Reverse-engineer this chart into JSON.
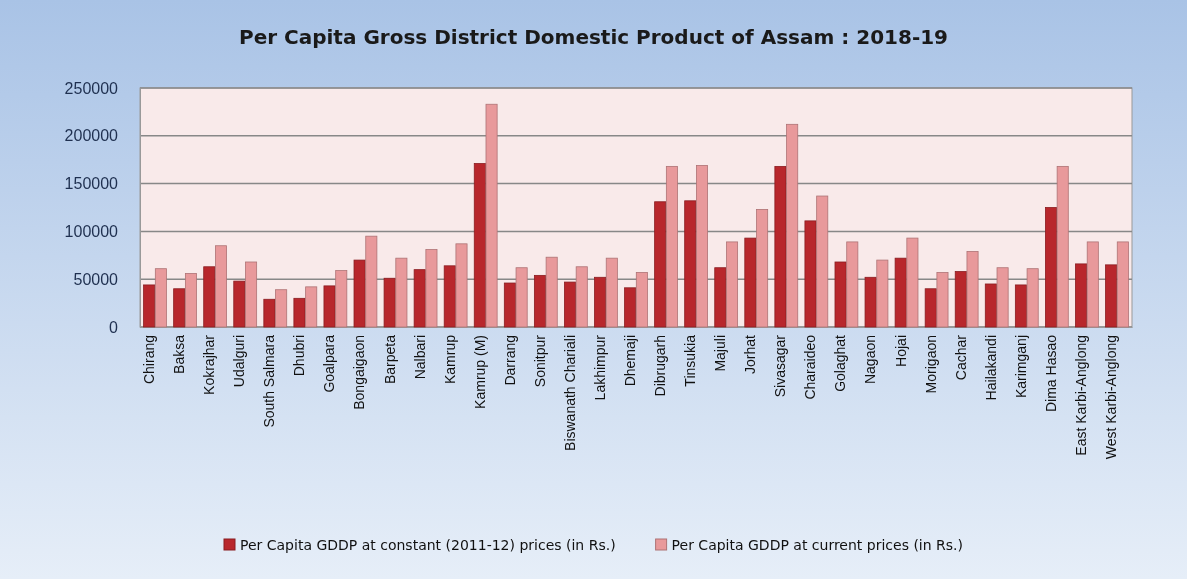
{
  "chart_data": {
    "type": "bar",
    "title": "Per Capita Gross District Domestic Product of Assam : 2018-19",
    "categories": [
      "Chirang",
      "Baksa",
      "Kokrajhar",
      "Udalguri",
      "South Salmara",
      "Dhubri",
      "Goalpara",
      "Bongaigaon",
      "Barpeta",
      "Nalbari",
      "Kamrup",
      "Kamrup (M)",
      "Darrang",
      "Sonitpur",
      "Biswanath Chariali",
      "Lakhimpur",
      "Dhemaji",
      "Dibrugarh",
      "Tinsukia",
      "Majuli",
      "Jorhat",
      "Sivasagar",
      "Charaideo",
      "Golaghat",
      "Nagaon",
      "Hojai",
      "Morigaon",
      "Cachar",
      "Hailakandi",
      "Karimganj",
      "Dima Hasao",
      "East Karbi-Anglong",
      "West Karbi-Anglong"
    ],
    "series": [
      {
        "name": "Per Capita GDDP at constant (2011-12) prices (in Rs.)",
        "color": "#b8272c",
        "values": [
          44000,
          40000,
          63000,
          48000,
          29000,
          30000,
          43000,
          70000,
          51000,
          60000,
          64000,
          171000,
          46000,
          54000,
          47000,
          52000,
          41000,
          131000,
          132000,
          62000,
          93000,
          168000,
          111000,
          68000,
          52000,
          72000,
          40000,
          58000,
          45000,
          44000,
          125000,
          66000,
          65000
        ]
      },
      {
        "name": "Per Capita GDDP at current prices (in Rs.)",
        "color": "#e8999b",
        "values": [
          61000,
          56000,
          85000,
          68000,
          39000,
          42000,
          59000,
          95000,
          72000,
          81000,
          87000,
          233000,
          62000,
          73000,
          63000,
          72000,
          57000,
          168000,
          169000,
          89000,
          123000,
          212000,
          137000,
          89000,
          70000,
          93000,
          57000,
          79000,
          62000,
          61000,
          168000,
          89000,
          89000
        ]
      }
    ],
    "ylim": [
      0,
      250000
    ],
    "yticks": [
      0,
      50000,
      100000,
      150000,
      200000,
      250000
    ],
    "grid": "y",
    "legend": "bottom"
  }
}
